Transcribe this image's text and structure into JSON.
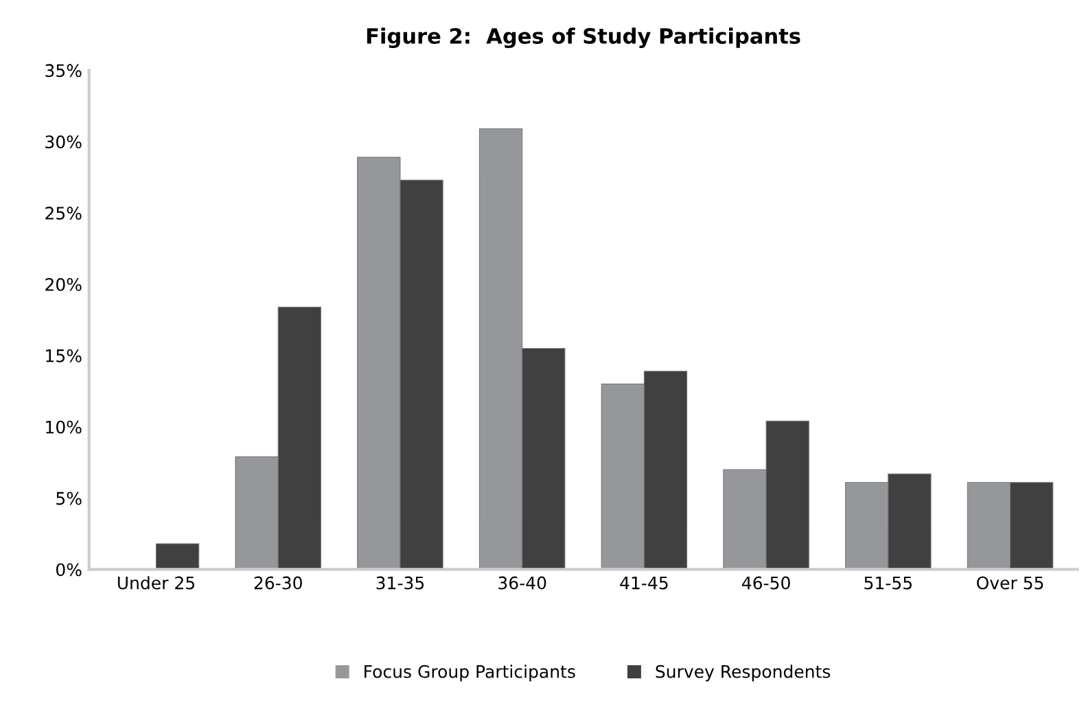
{
  "chart_data": {
    "type": "bar",
    "title": "Figure 2:  Ages of Study Participants",
    "categories": [
      "Under 25",
      "26-30",
      "31-35",
      "36-40",
      "41-45",
      "46-50",
      "51-55",
      "Over 55"
    ],
    "series": [
      {
        "name": "Focus Group Participants",
        "color": "#96979b",
        "values": [
          null,
          7.9,
          28.9,
          30.9,
          13.0,
          7.0,
          6.1,
          6.1
        ]
      },
      {
        "name": "Survey Respondents",
        "color": "#404040",
        "values": [
          1.8,
          18.4,
          27.3,
          15.5,
          13.9,
          10.4,
          6.7,
          6.1
        ]
      }
    ],
    "ylim": [
      0,
      35
    ],
    "yticks": [
      {
        "value": 0,
        "label": "0%"
      },
      {
        "value": 5,
        "label": "5%"
      },
      {
        "value": 10,
        "label": "10%"
      },
      {
        "value": 15,
        "label": "15%"
      },
      {
        "value": 20,
        "label": "20%"
      },
      {
        "value": 25,
        "label": "25%"
      },
      {
        "value": 30,
        "label": "30%"
      },
      {
        "value": 35,
        "label": "35%"
      }
    ],
    "legend": "bottom",
    "grid": false
  }
}
